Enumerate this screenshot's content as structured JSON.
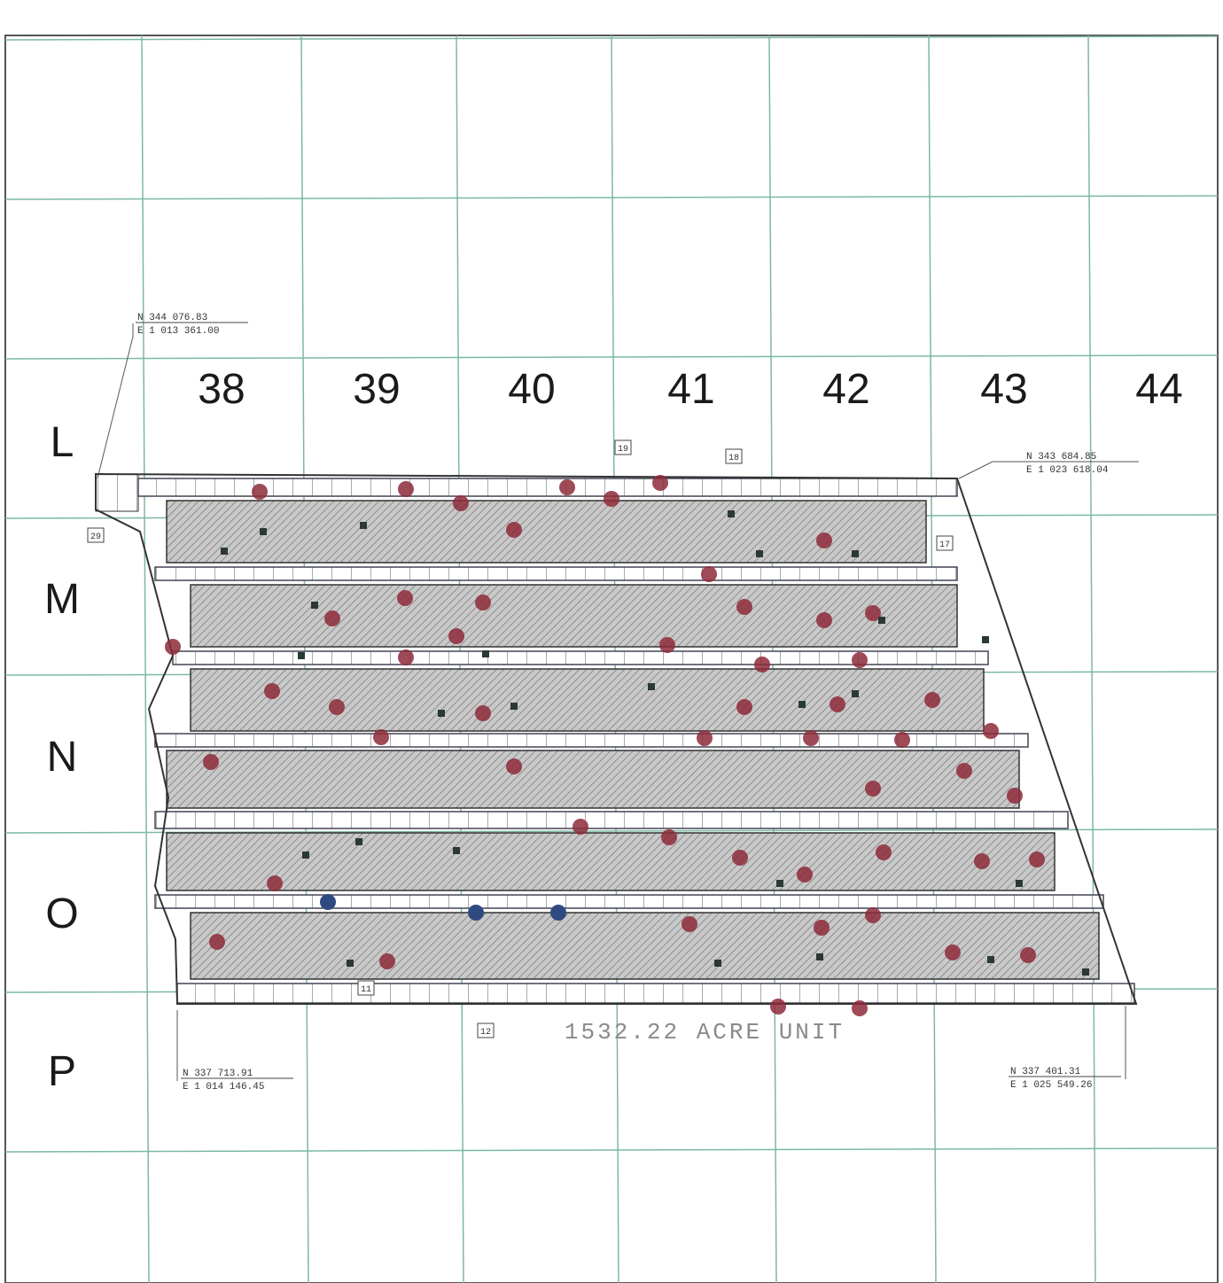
{
  "grid": {
    "columns": [
      "38",
      "39",
      "40",
      "41",
      "42",
      "43",
      "44"
    ],
    "rows": [
      "L",
      "M",
      "N",
      "O",
      "P"
    ]
  },
  "coordinates": [
    {
      "north": "N 344 076.83",
      "east": "E 1 013 361.00"
    },
    {
      "north": "N 343 684.85",
      "east": "E 1 023 618.04"
    },
    {
      "north": "N 337 713.91",
      "east": "E 1 014 146.45"
    },
    {
      "north": "N 337 401.31",
      "east": "E 1 025 549.26"
    }
  ],
  "tract_labels": [
    "29",
    "19",
    "18",
    "17",
    "12",
    "11"
  ],
  "unit_label": "1532.22 ACRE UNIT"
}
